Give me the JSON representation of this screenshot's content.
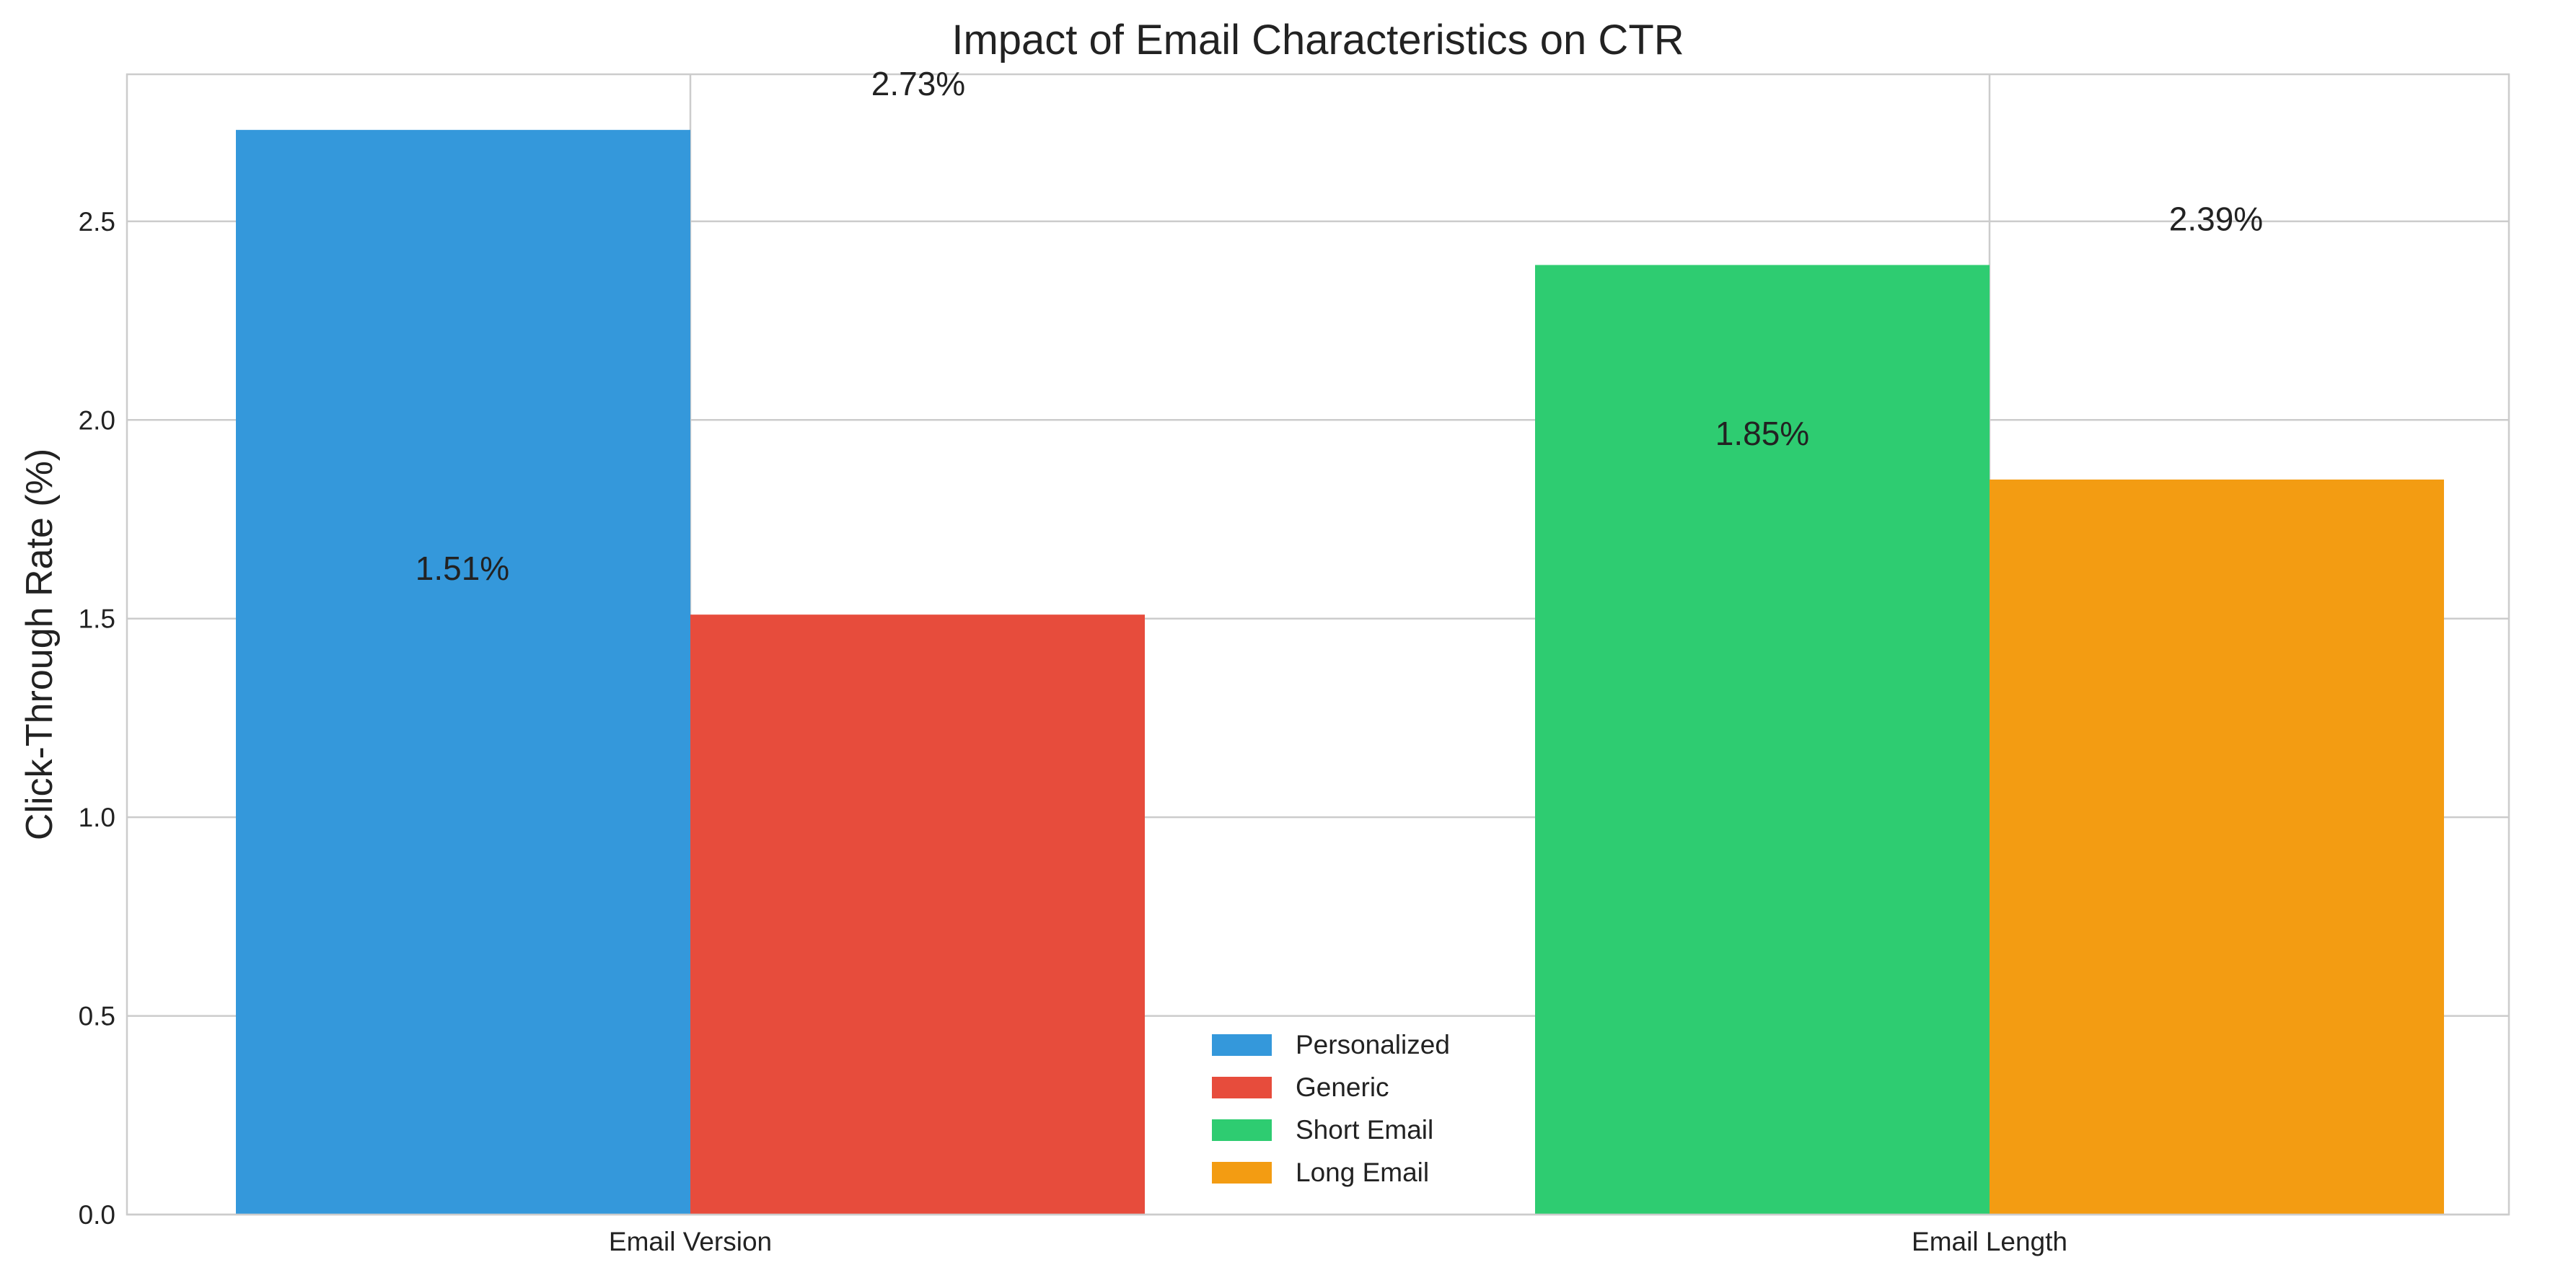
{
  "chart_data": {
    "type": "bar",
    "title": "Impact of Email Characteristics on CTR",
    "xlabel": "",
    "ylabel": "Click-Through Rate (%)",
    "ylim": [
      0,
      2.87
    ],
    "yticks": [
      0.0,
      0.5,
      1.0,
      1.5,
      2.0,
      2.5
    ],
    "ytick_labels": [
      "0.0",
      "0.5",
      "1.0",
      "1.5",
      "2.0",
      "2.5"
    ],
    "categories": [
      "Email Version",
      "Email Length"
    ],
    "grid": true,
    "legend_position": "lower-center",
    "bars": [
      {
        "series": "Personalized",
        "category": "Email Version",
        "value": 2.73,
        "color": "#3498db"
      },
      {
        "series": "Generic",
        "category": "Email Version",
        "value": 1.51,
        "color": "#e74c3c"
      },
      {
        "series": "Short Email",
        "category": "Email Length",
        "value": 2.39,
        "color": "#2ecc71"
      },
      {
        "series": "Long Email",
        "category": "Email Length",
        "value": 1.85,
        "color": "#f39c12"
      }
    ],
    "data_labels": [
      "2.73%",
      "1.51%",
      "2.39%",
      "1.85%"
    ],
    "legend": [
      {
        "name": "Personalized",
        "color": "#3498db"
      },
      {
        "name": "Generic",
        "color": "#e74c3c"
      },
      {
        "name": "Short Email",
        "color": "#2ecc71"
      },
      {
        "name": "Long Email",
        "color": "#f39c12"
      }
    ]
  }
}
